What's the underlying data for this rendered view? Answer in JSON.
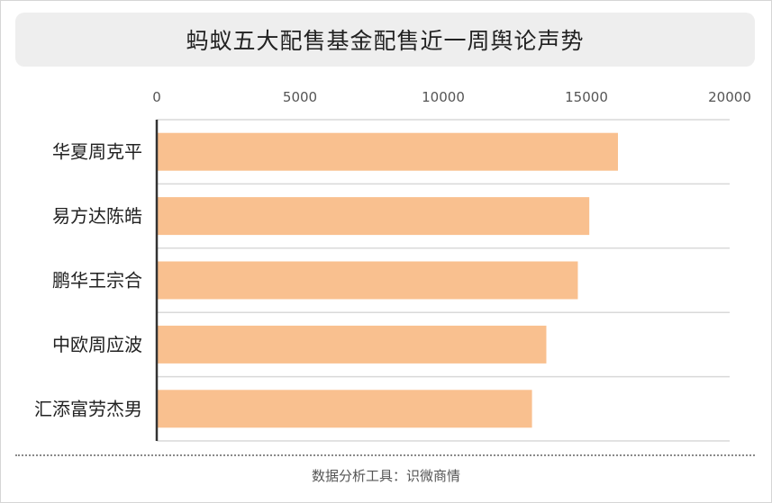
{
  "title": "蚂蚁五大配售基金配售近一周舆论声势",
  "source": "数据分析工具：识微商情",
  "colors": {
    "bar": "#f9c08f",
    "grid": "#d9d9d9",
    "axis": "#333333",
    "tick_text": "#555555",
    "label_text": "#222222"
  },
  "chart_data": {
    "type": "bar",
    "orientation": "horizontal",
    "categories": [
      "华夏周克平",
      "易方达陈皓",
      "鹏华王宗合",
      "中欧周应波",
      "汇添富劳杰男"
    ],
    "values": [
      16100,
      15100,
      14700,
      13600,
      13100
    ],
    "xlim": [
      0,
      20000
    ],
    "xticks": [
      "0",
      "5000",
      "10000",
      "15000",
      "20000"
    ],
    "x_axis_position": "top",
    "grid": true,
    "legend": "none",
    "title": "蚂蚁五大配售基金配售近一周舆论声势",
    "xlabel": "",
    "ylabel": ""
  }
}
